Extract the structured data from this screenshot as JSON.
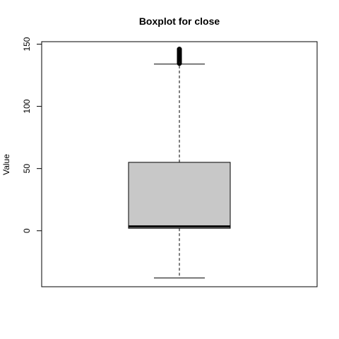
{
  "chart_data": {
    "type": "boxplot",
    "title": "Boxplot for close",
    "xlabel": "",
    "ylabel": "Value",
    "ylim": [
      -45,
      152
    ],
    "y_ticks": [
      0,
      50,
      100,
      150
    ],
    "y_tick_labels": [
      "0",
      "50",
      "100",
      "150"
    ],
    "grid": false,
    "series": [
      {
        "whisker_low": -38,
        "q1": 2,
        "median": 3.5,
        "q3": 55,
        "whisker_high": 134,
        "outliers": [
          134.5,
          135,
          135.5,
          136,
          136.5,
          137,
          137.5,
          138,
          138.5,
          139,
          139.5,
          140,
          140.5,
          141,
          141.5,
          142,
          142.5,
          143,
          143.5,
          144,
          144.5,
          145,
          145.5,
          146
        ]
      }
    ],
    "colors": {
      "box_fill": "#c8c8c8",
      "stroke": "#000000",
      "background": "#ffffff"
    }
  }
}
